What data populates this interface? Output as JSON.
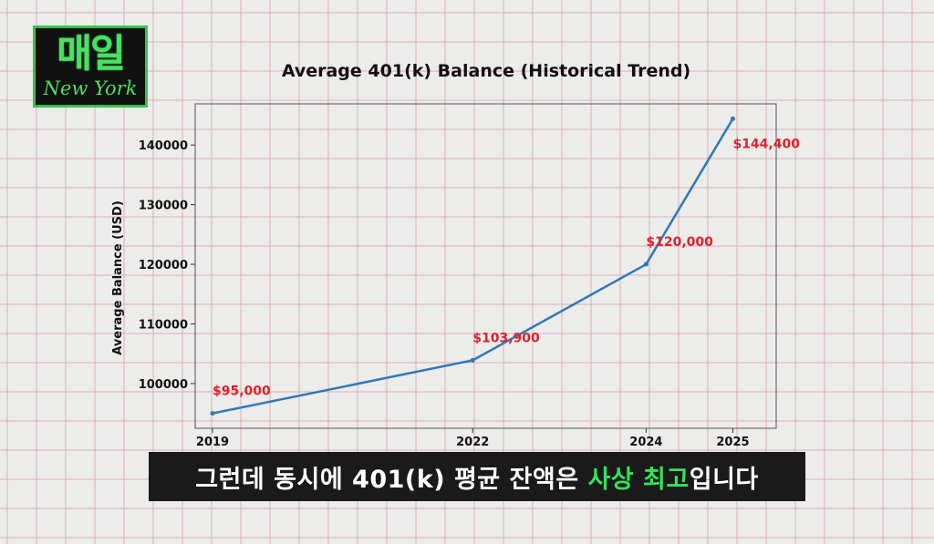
{
  "logo": {
    "title": "매일",
    "subtitle": "New York"
  },
  "caption": {
    "before": "그런데 동시에 401(k) 평균 잔액은 ",
    "highlight": "사상 최고",
    "after": "입니다",
    "highlight_color": "#33e35a"
  },
  "chart_data": {
    "type": "line",
    "title": "Average 401(k) Balance (Historical Trend)",
    "xlabel": "",
    "ylabel": "Average Balance (USD)",
    "x": [
      2019,
      2022,
      2024,
      2025
    ],
    "x_tick_labels": [
      "2019",
      "2022",
      "2024",
      "2025"
    ],
    "series": [
      {
        "name": "",
        "values": [
          95000,
          103900,
          120000,
          144400
        ],
        "color": "#2f78b7"
      }
    ],
    "data_labels": [
      "$95,000",
      "$103,900",
      "$120,000",
      "$144,400"
    ],
    "data_label_color": "#e0222a",
    "y_ticks": [
      100000,
      110000,
      120000,
      130000,
      140000
    ],
    "y_tick_labels": [
      "100000",
      "110000",
      "120000",
      "130000",
      "140000"
    ],
    "xlim": [
      2018.8,
      2025.5
    ],
    "ylim": [
      92500,
      146900
    ],
    "grid": false,
    "legend": "none"
  }
}
